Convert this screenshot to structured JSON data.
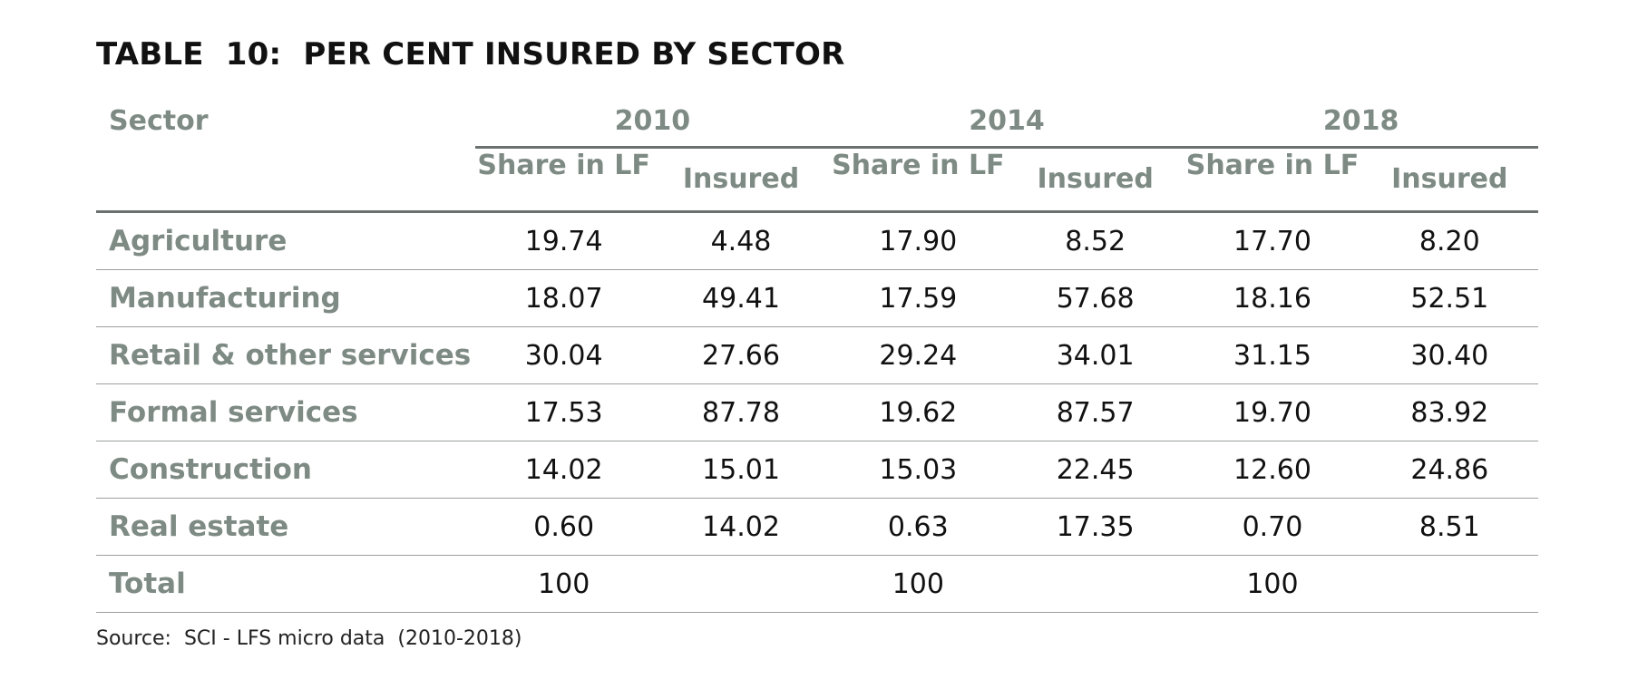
{
  "title": "TABLE  10:  PER CENT INSURED BY SECTOR",
  "table": {
    "sector_header": "Sector",
    "years": [
      "2010",
      "2014",
      "2018"
    ],
    "subheaders": {
      "share": "Share in LF",
      "insured": "Insured"
    },
    "rows": [
      {
        "label": "Agriculture",
        "values": [
          "19.74",
          "4.48",
          "17.90",
          "8.52",
          "17.70",
          "8.20"
        ]
      },
      {
        "label": "Manufacturing",
        "values": [
          "18.07",
          "49.41",
          "17.59",
          "57.68",
          "18.16",
          "52.51"
        ]
      },
      {
        "label": "Retail & other services",
        "values": [
          "30.04",
          "27.66",
          "29.24",
          "34.01",
          "31.15",
          "30.40"
        ]
      },
      {
        "label": "Formal services",
        "values": [
          "17.53",
          "87.78",
          "19.62",
          "87.57",
          "19.70",
          "83.92"
        ]
      },
      {
        "label": "Construction",
        "values": [
          "14.02",
          "15.01",
          "15.03",
          "22.45",
          "12.60",
          "24.86"
        ]
      },
      {
        "label": "Real estate",
        "values": [
          "0.60",
          "14.02",
          "0.63",
          "17.35",
          "0.70",
          "8.51"
        ]
      },
      {
        "label": "Total",
        "values": [
          "100",
          "",
          "100",
          "",
          "100",
          ""
        ]
      }
    ]
  },
  "source": "Source:  SCI - LFS micro data  (2010-2018)"
}
